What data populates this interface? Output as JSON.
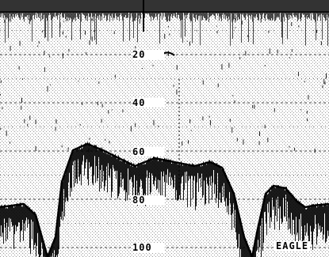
{
  "display": {
    "brand": "EAGLE",
    "depth_scale": [
      {
        "value": 20,
        "label": "20"
      },
      {
        "value": 40,
        "label": "40"
      },
      {
        "value": 60,
        "label": "60"
      },
      {
        "value": 80,
        "label": "80"
      },
      {
        "value": 100,
        "label": "100"
      }
    ],
    "colors": {
      "background": "#ffffff",
      "ink": "#000000",
      "grid": "#444444",
      "clutter": "#888888"
    }
  }
}
